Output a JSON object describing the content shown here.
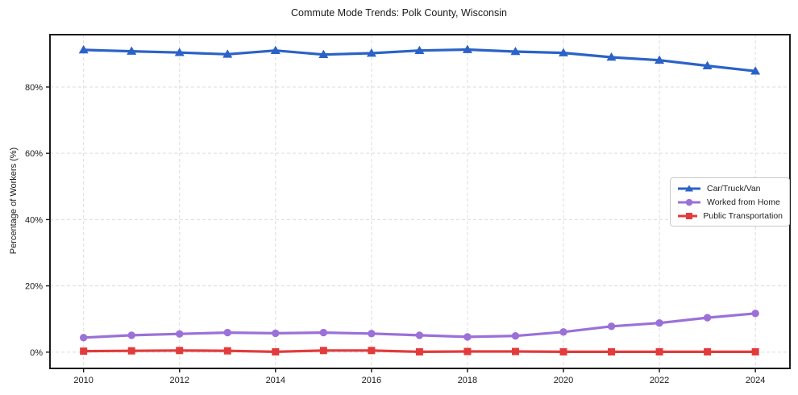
{
  "chart_data": {
    "type": "line",
    "title": "Commute Mode Trends: Polk County, Wisconsin",
    "xlabel": "",
    "ylabel": "Percentage of Workers (%)",
    "x": [
      2010,
      2011,
      2012,
      2013,
      2014,
      2015,
      2016,
      2017,
      2018,
      2019,
      2020,
      2021,
      2022,
      2023,
      2024
    ],
    "x_ticks": [
      2010,
      2012,
      2014,
      2016,
      2018,
      2020,
      2022,
      2024
    ],
    "y_ticks": [
      0,
      20,
      40,
      60,
      80
    ],
    "y_tick_suffix": "%",
    "xlim": [
      2009.3,
      2024.72
    ],
    "ylim": [
      -4.9,
      95.8
    ],
    "grid": "dashed-both",
    "legend_position": "center-right",
    "series": [
      {
        "name": "Car/Truck/Van",
        "color": "#2b62c7",
        "marker": "triangle",
        "values": [
          91.2,
          90.8,
          90.4,
          89.9,
          91.0,
          89.8,
          90.2,
          91.0,
          91.3,
          90.7,
          90.3,
          89.0,
          88.1,
          86.4,
          84.8
        ]
      },
      {
        "name": "Worked from Home",
        "color": "#9b70d8",
        "marker": "circle",
        "values": [
          4.4,
          5.1,
          5.5,
          5.9,
          5.7,
          5.9,
          5.6,
          5.1,
          4.6,
          4.9,
          6.1,
          7.8,
          8.8,
          10.4,
          11.7
        ]
      },
      {
        "name": "Public Transportation",
        "color": "#e23b3b",
        "marker": "square",
        "values": [
          0.3,
          0.4,
          0.5,
          0.4,
          0.1,
          0.5,
          0.5,
          0.1,
          0.2,
          0.2,
          0.1,
          0.1,
          0.1,
          0.1,
          0.1
        ]
      }
    ]
  }
}
